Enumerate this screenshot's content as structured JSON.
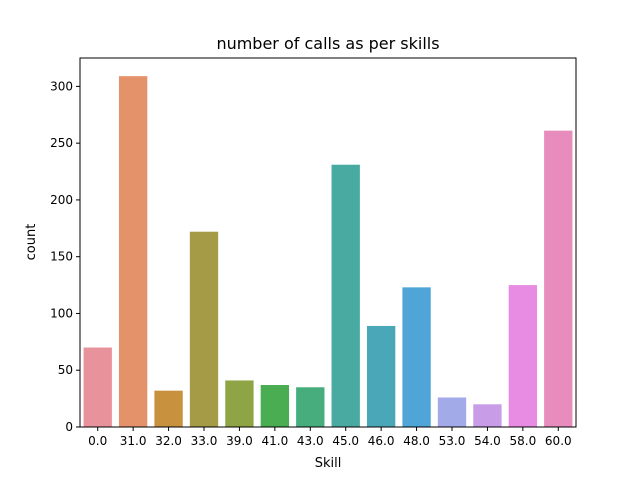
{
  "chart_data": {
    "type": "bar",
    "title": "number of calls as per skills",
    "xlabel": "Skill",
    "ylabel": "count",
    "categories": [
      "0.0",
      "31.0",
      "32.0",
      "33.0",
      "39.0",
      "41.0",
      "43.0",
      "45.0",
      "46.0",
      "48.0",
      "53.0",
      "54.0",
      "58.0",
      "60.0"
    ],
    "values": [
      70,
      309,
      32,
      172,
      41,
      37,
      35,
      231,
      89,
      123,
      26,
      20,
      125,
      261
    ],
    "colors": [
      "#e8939c",
      "#e4926a",
      "#c7913e",
      "#a59a45",
      "#8fa545",
      "#4aad52",
      "#47ad7d",
      "#48aaa1",
      "#4aa7b8",
      "#4fa5d8",
      "#a3aae8",
      "#c99ce8",
      "#e88be2",
      "#e88cbe"
    ],
    "ylim": [
      0,
      325
    ],
    "yticks": [
      0,
      50,
      100,
      150,
      200,
      250,
      300
    ],
    "grid": false,
    "legend": "none"
  }
}
